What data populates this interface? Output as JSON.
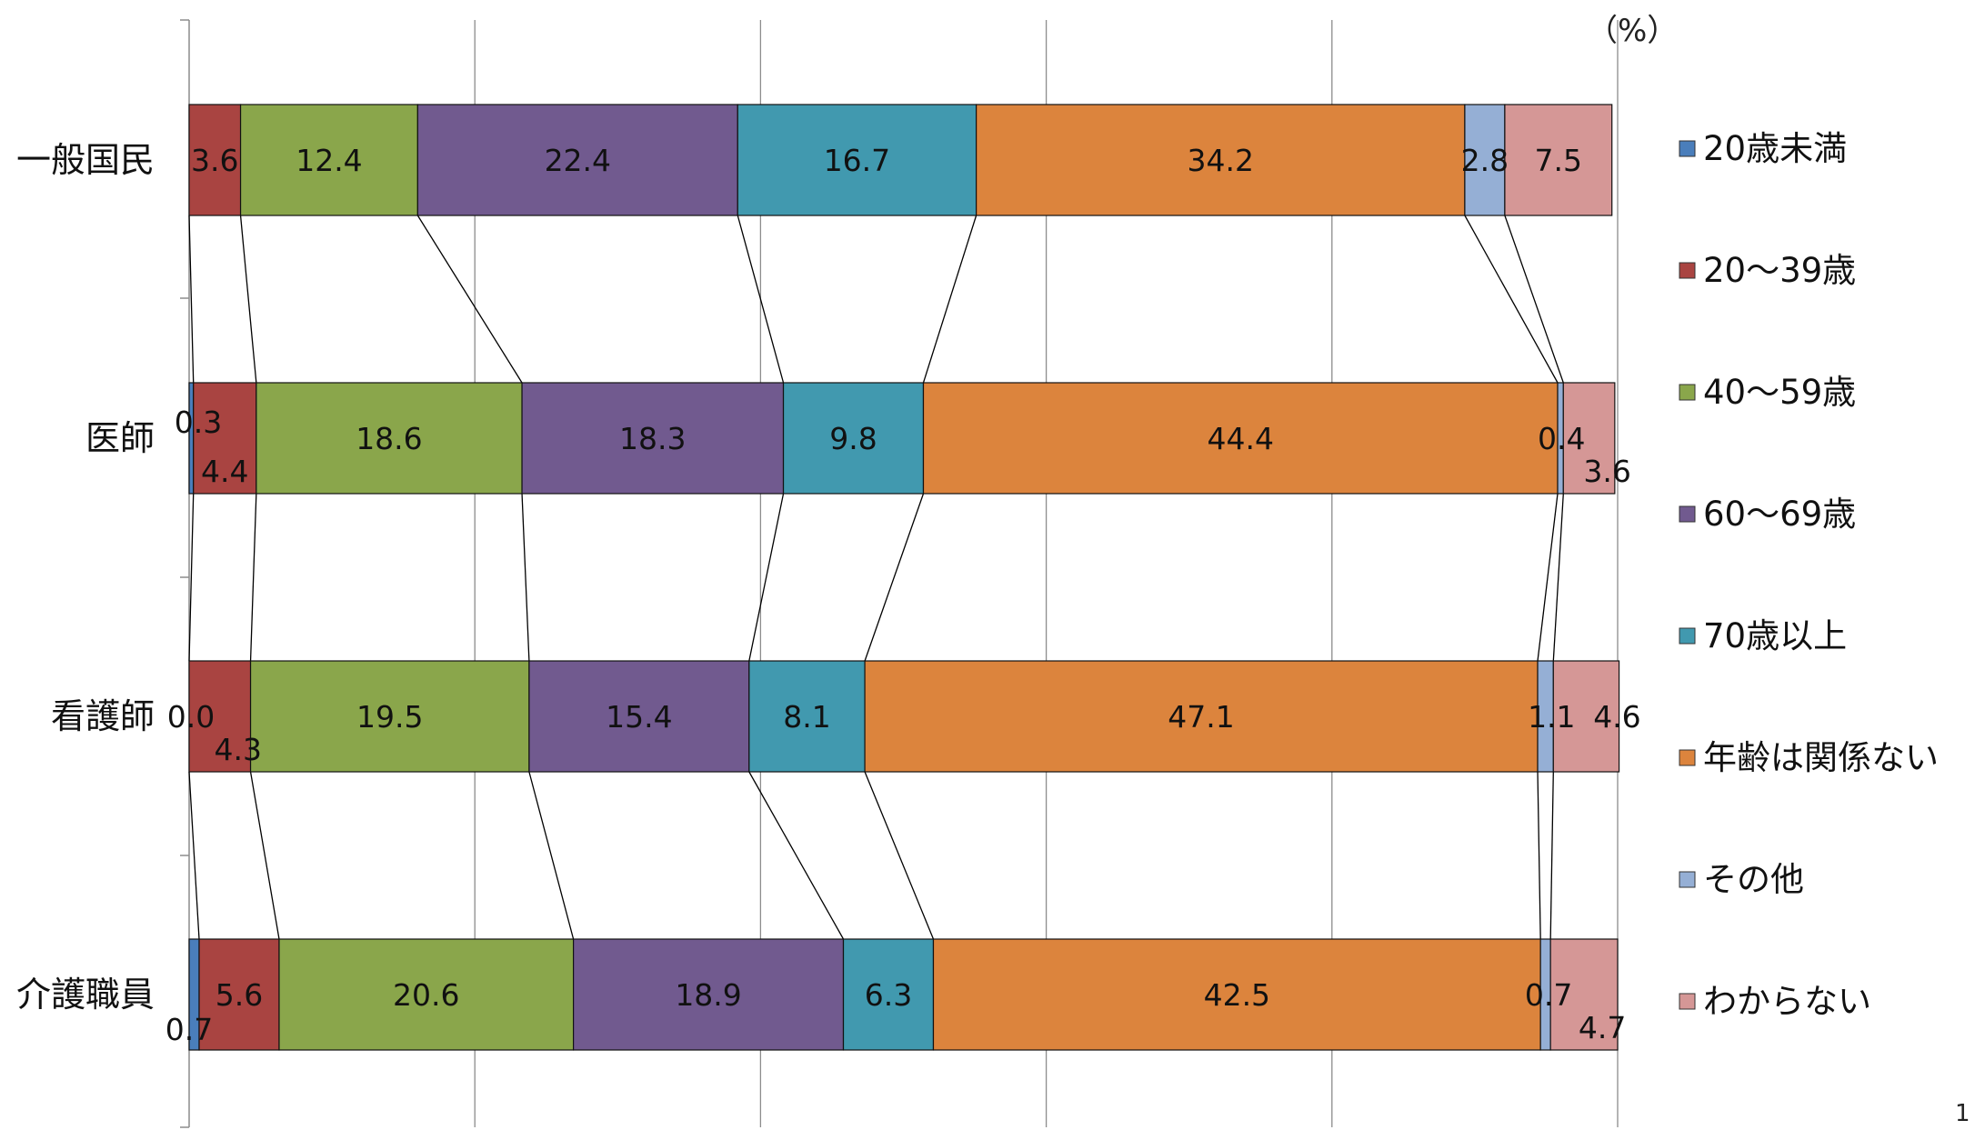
{
  "chart_data": {
    "type": "bar",
    "orientation": "horizontal-stacked-100",
    "unit_label": "（%）",
    "page_number": "1",
    "categories": [
      "一般国民",
      "医師",
      "看護師",
      "介護職員"
    ],
    "series": [
      {
        "name": "20歳未満",
        "color": "#4A7EBB",
        "values": [
          0.0,
          0.3,
          0.0,
          0.7
        ],
        "labels": [
          "",
          "0.3",
          "0.0",
          "0.7"
        ]
      },
      {
        "name": "20～39歳",
        "color": "#A94441",
        "values": [
          3.6,
          4.4,
          4.3,
          5.6
        ],
        "labels": [
          "3.6",
          "4.4",
          "4.3",
          "5.6"
        ]
      },
      {
        "name": "40～59歳",
        "color": "#8AA64B",
        "values": [
          12.4,
          18.6,
          19.5,
          20.6
        ],
        "labels": [
          "12.4",
          "18.6",
          "19.5",
          "20.6"
        ]
      },
      {
        "name": "60～69歳",
        "color": "#715A8F",
        "values": [
          22.4,
          18.3,
          15.4,
          18.9
        ],
        "labels": [
          "22.4",
          "18.3",
          "15.4",
          "18.9"
        ]
      },
      {
        "name": "70歳以上",
        "color": "#4199AF",
        "values": [
          16.7,
          9.8,
          8.1,
          6.3
        ],
        "labels": [
          "16.7",
          "9.8",
          "8.1",
          "6.3"
        ]
      },
      {
        "name": "年齢は関係ない",
        "color": "#DC843D",
        "values": [
          34.2,
          44.4,
          47.1,
          42.5
        ],
        "labels": [
          "34.2",
          "44.4",
          "47.1",
          "42.5"
        ]
      },
      {
        "name": "その他",
        "color": "#95AFD5",
        "values": [
          2.8,
          0.4,
          1.1,
          0.7
        ],
        "labels": [
          "2.8",
          "0.4",
          "1.1",
          "0.7"
        ]
      },
      {
        "name": "わからない",
        "color": "#D59796",
        "values": [
          7.5,
          3.6,
          4.6,
          4.7
        ],
        "labels": [
          "7.5",
          "3.6",
          "4.6",
          "4.7"
        ]
      }
    ],
    "xlim": [
      0,
      100
    ],
    "grid": true,
    "legend_position": "right",
    "series_lines": true
  }
}
